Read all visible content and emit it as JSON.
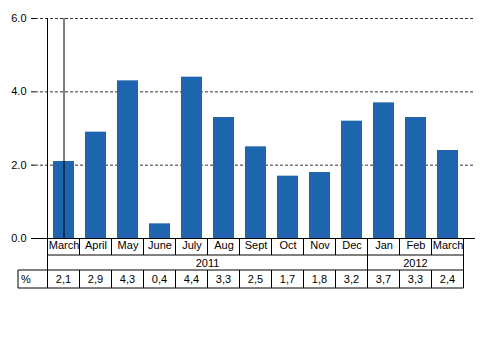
{
  "chart_data": {
    "type": "bar",
    "categories": [
      "March",
      "April",
      "May",
      "June",
      "July",
      "Aug",
      "Sept",
      "Oct",
      "Nov",
      "Dec",
      "Jan",
      "Feb",
      "March"
    ],
    "years": [
      "2011",
      "2011",
      "2011",
      "2011",
      "2011",
      "2011",
      "2011",
      "2011",
      "2011",
      "2011",
      "2012",
      "2012",
      "2012"
    ],
    "values": [
      2.1,
      2.9,
      4.3,
      0.4,
      4.4,
      3.3,
      2.5,
      1.7,
      1.8,
      3.2,
      3.7,
      3.3,
      2.4
    ],
    "value_labels": [
      "2,1",
      "2,9",
      "4,3",
      "0,4",
      "4,4",
      "3,3",
      "2,5",
      "1,7",
      "1,8",
      "3,2",
      "3,7",
      "3,3",
      "2,4"
    ],
    "table_row_label": "%",
    "color": "#1f64ae",
    "ylim": [
      0,
      6
    ],
    "yticks": [
      0,
      2,
      4,
      6
    ],
    "grid": true,
    "data_labels": true
  }
}
